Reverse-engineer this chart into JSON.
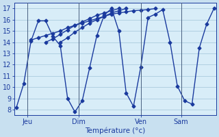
{
  "background_color": "#c8e0f0",
  "plot_bg_color": "#d8edf8",
  "grid_color": "#a0c4d8",
  "line_color": "#1a3a9e",
  "sep_color": "#4a6080",
  "marker": "D",
  "markersize": 2.5,
  "linewidth": 1.0,
  "xlabel": "Température (°c)",
  "xlabel_fontsize": 7.5,
  "tick_fontsize": 7,
  "ylim": [
    7.5,
    17.5
  ],
  "yticks": [
    8,
    9,
    10,
    11,
    12,
    13,
    14,
    15,
    16,
    17
  ],
  "xlim": [
    -0.3,
    27.3
  ],
  "vline_positions": [
    1.5,
    8.5,
    17.0,
    22.5
  ],
  "xtick_positions": [
    1.5,
    8.5,
    17.0,
    22.5
  ],
  "xtick_labels": [
    "Jeu",
    "Dim",
    "Ven",
    "Sam"
  ],
  "series": [
    [
      8.2,
      10.3,
      14.1,
      15.9,
      15.9,
      14.5,
      13.7,
      9.0,
      7.8,
      8.8,
      11.7,
      14.6,
      16.4,
      17.0,
      15.0,
      9.5,
      8.3,
      11.8,
      16.2,
      16.5,
      16.9,
      14.0,
      10.1,
      8.8,
      8.5,
      13.5,
      15.6,
      17.0
    ],
    [
      14.2,
      14.4,
      14.6,
      14.8,
      15.0,
      15.3,
      15.5,
      15.7,
      15.9,
      16.1,
      16.3,
      16.5,
      16.6,
      16.7,
      16.8,
      16.85,
      16.9,
      17.0
    ],
    [
      14.0,
      14.3,
      14.7,
      15.1,
      15.5,
      15.8,
      16.1,
      16.4,
      16.6,
      16.8,
      17.0
    ],
    [
      14.0,
      14.4,
      14.9,
      15.3,
      15.7,
      16.0,
      16.3,
      16.6,
      16.8,
      17.0
    ]
  ],
  "series_x": [
    [
      0,
      1,
      2,
      3,
      4,
      5,
      6,
      7,
      8,
      9,
      10,
      11,
      12,
      13,
      14,
      15,
      16,
      17,
      18,
      19,
      20,
      21,
      22,
      23,
      24,
      25,
      26,
      27
    ],
    [
      2,
      3,
      4,
      5,
      6,
      7,
      8,
      9,
      10,
      11,
      12,
      13,
      14,
      15,
      16,
      17,
      18,
      19
    ],
    [
      4,
      5,
      6,
      7,
      8,
      9,
      10,
      11,
      12,
      13,
      14
    ],
    [
      6,
      7,
      8,
      9,
      10,
      11,
      12,
      13,
      14,
      15
    ]
  ]
}
